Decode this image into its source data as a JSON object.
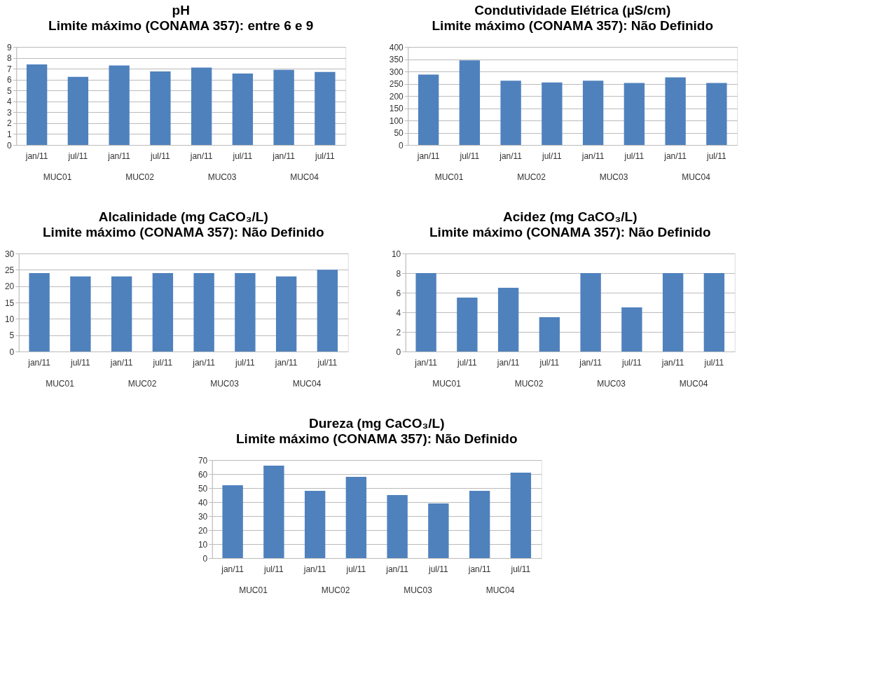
{
  "chart_data": [
    {
      "type": "bar",
      "title": "pH",
      "subtitle": "Limite máximo (CONAMA 357): entre 6 e 9",
      "categories": [
        "jan/11",
        "jul/11",
        "jan/11",
        "jul/11",
        "jan/11",
        "jul/11",
        "jan/11",
        "jul/11"
      ],
      "values": [
        7.4,
        6.25,
        7.3,
        6.75,
        7.1,
        6.55,
        6.9,
        6.7
      ],
      "color": "#4f81bd",
      "ylim": [
        0,
        9
      ],
      "yticks": [
        0,
        1,
        2,
        3,
        4,
        5,
        6,
        7,
        8,
        9
      ],
      "grid": "y",
      "annotations": [
        "MUC01",
        "MUC02",
        "MUC03",
        "MUC04"
      ]
    },
    {
      "type": "bar",
      "title": "Condutividade Elétrica (µS/cm)",
      "subtitle": "Limite máximo (CONAMA 357): Não Definido",
      "categories": [
        "jan/11",
        "jul/11",
        "jan/11",
        "jul/11",
        "jan/11",
        "jul/11",
        "jan/11",
        "jul/11"
      ],
      "values": [
        287,
        345,
        262,
        255,
        262,
        253,
        276,
        253
      ],
      "color": "#4f81bd",
      "ylim": [
        0,
        400
      ],
      "yticks": [
        0,
        50,
        100,
        150,
        200,
        250,
        300,
        350,
        400
      ],
      "grid": "y",
      "annotations": [
        "MUC01",
        "MUC02",
        "MUC03",
        "MUC04"
      ]
    },
    {
      "type": "bar",
      "title": "Alcalinidade (mg CaCO₃/L)",
      "subtitle": "Limite máximo (CONAMA 357): Não Definido",
      "categories": [
        "jan/11",
        "jul/11",
        "jan/11",
        "jul/11",
        "jan/11",
        "jul/11",
        "jan/11",
        "jul/11"
      ],
      "values": [
        24,
        23,
        23,
        24,
        24,
        24,
        23,
        25
      ],
      "color": "#4f81bd",
      "ylim": [
        0,
        30
      ],
      "yticks": [
        0,
        5,
        10,
        15,
        20,
        25,
        30
      ],
      "grid": "y",
      "annotations": [
        "MUC01",
        "MUC02",
        "MUC03",
        "MUC04"
      ]
    },
    {
      "type": "bar",
      "title": "Acidez (mg CaCO₃/L)",
      "subtitle": "Limite máximo (CONAMA 357): Não Definido",
      "categories": [
        "jan/11",
        "jul/11",
        "jan/11",
        "jul/11",
        "jan/11",
        "jul/11",
        "jan/11",
        "jul/11"
      ],
      "values": [
        8,
        5.5,
        6.5,
        3.5,
        8,
        4.5,
        8,
        8
      ],
      "color": "#4f81bd",
      "ylim": [
        0,
        10
      ],
      "yticks": [
        0,
        2,
        4,
        6,
        8,
        10
      ],
      "grid": "y",
      "annotations": [
        "MUC01",
        "MUC02",
        "MUC03",
        "MUC04"
      ]
    },
    {
      "type": "bar",
      "title": "Dureza (mg CaCO₃/L)",
      "subtitle": "Limite máximo (CONAMA 357): Não Definido",
      "categories": [
        "jan/11",
        "jul/11",
        "jan/11",
        "jul/11",
        "jan/11",
        "jul/11",
        "jan/11",
        "jul/11"
      ],
      "values": [
        52,
        66,
        48,
        58,
        45,
        39,
        48,
        61
      ],
      "color": "#4f81bd",
      "ylim": [
        0,
        70
      ],
      "yticks": [
        0,
        10,
        20,
        30,
        40,
        50,
        60,
        70
      ],
      "grid": "y",
      "annotations": [
        "MUC01",
        "MUC02",
        "MUC03",
        "MUC04"
      ]
    }
  ]
}
